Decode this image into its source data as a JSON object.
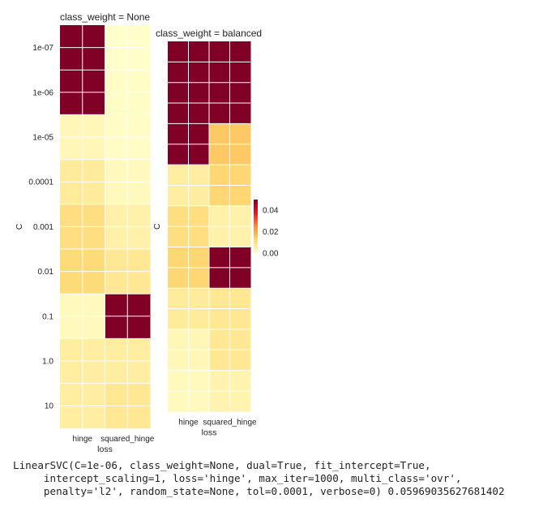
{
  "chart_data": [
    {
      "type": "heatmap",
      "title": "class_weight = None",
      "xlabel": "loss",
      "ylabel": "C",
      "x_categories": [
        "hinge",
        "squared_hinge"
      ],
      "y_categories": [
        "1e-07",
        "1e-06",
        "1e-05",
        "0.0001",
        "0.001",
        "0.01",
        "0.1",
        "1.0",
        "10"
      ],
      "values": [
        [
          0.05,
          0.0
        ],
        [
          0.056,
          0.001
        ],
        [
          0.003,
          0.001
        ],
        [
          0.007,
          0.002
        ],
        [
          0.011,
          0.005
        ],
        [
          0.012,
          0.008
        ],
        [
          0.002,
          0.06
        ],
        [
          0.006,
          0.006
        ],
        [
          0.006,
          0.008
        ]
      ]
    },
    {
      "type": "heatmap",
      "title": "class_weight = balanced",
      "xlabel": "loss",
      "ylabel": "C",
      "x_categories": [
        "hinge",
        "squared_hinge"
      ],
      "y_categories": [
        "1e-07",
        "1e-06",
        "1e-05",
        "0.0001",
        "0.001",
        "0.01",
        "0.1",
        "1.0",
        "10"
      ],
      "show_y_ticks": false,
      "values": [
        [
          0.055,
          0.056
        ],
        [
          0.057,
          0.056
        ],
        [
          0.05,
          0.015
        ],
        [
          0.006,
          0.013
        ],
        [
          0.011,
          0.005
        ],
        [
          0.013,
          0.06
        ],
        [
          0.007,
          0.008
        ],
        [
          0.003,
          0.008
        ],
        [
          0.002,
          0.004
        ]
      ]
    }
  ],
  "colorbar": {
    "colormap": "YlOrRd",
    "vmin": 0.0,
    "vmax": 0.05,
    "ticks": [
      {
        "value": 0.0,
        "label": "0.00"
      },
      {
        "value": 0.02,
        "label": "0.02"
      },
      {
        "value": 0.04,
        "label": "0.04"
      }
    ]
  },
  "caption": "LinearSVC(C=1e-06, class_weight=None, dual=True, fit_intercept=True,\n     intercept_scaling=1, loss='hinge', max_iter=1000, multi_class='ovr',\n     penalty='l2', random_state=None, tol=0.0001, verbose=0) 0.05969035627681402",
  "colors": {
    "grid": "#ffffff",
    "text": "#222222",
    "cmap_stops": [
      "#ffffcc",
      "#ffeda0",
      "#fed976",
      "#feb24c",
      "#fd8d3c",
      "#fc4e2a",
      "#e31a1c",
      "#bd0026",
      "#800026"
    ]
  }
}
